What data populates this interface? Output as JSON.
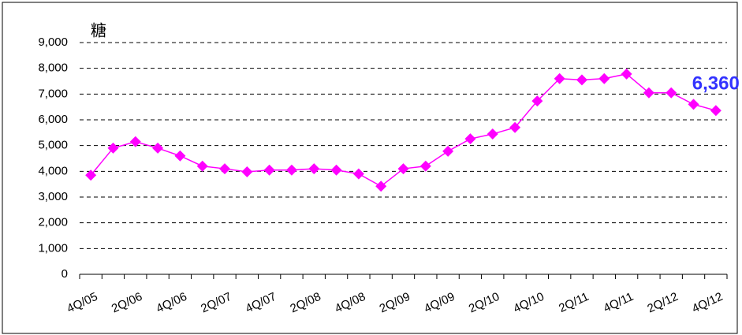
{
  "chart_data": {
    "type": "line",
    "y_label": "糖",
    "categories": [
      "4Q/05",
      null,
      "2Q/06",
      null,
      "4Q/06",
      null,
      "2Q/07",
      null,
      "4Q/07",
      null,
      "2Q/08",
      null,
      "4Q/08",
      null,
      "2Q/09",
      null,
      "4Q/09",
      null,
      "2Q/10",
      null,
      "4Q/10",
      null,
      "2Q/11",
      null,
      "4Q/11",
      null,
      "2Q/12",
      null,
      "4Q/12"
    ],
    "series": [
      {
        "name": "Sugar",
        "color": "#ff00ff",
        "values": [
          3850,
          4900,
          5150,
          4900,
          4600,
          4200,
          4100,
          3980,
          4050,
          4050,
          4100,
          4050,
          3900,
          3420,
          4100,
          4200,
          4780,
          5260,
          5450,
          5700,
          6730,
          7600,
          7550,
          7600,
          7780,
          7050,
          7050,
          6600,
          6360
        ],
        "value_labels": [
          null,
          null,
          null,
          null,
          null,
          null,
          null,
          null,
          null,
          null,
          null,
          null,
          null,
          null,
          null,
          null,
          null,
          null,
          null,
          null,
          null,
          null,
          null,
          null,
          null,
          null,
          null,
          null,
          "6,360"
        ]
      }
    ],
    "label_color": "#3333ff",
    "ylim": [
      0,
      9000
    ],
    "yticks": [
      0,
      {
        "value": 1000,
        "label": "1,000"
      },
      {
        "value": 2000,
        "label": "2,000"
      },
      {
        "value": 3000,
        "label": "3,000"
      },
      {
        "value": 4000,
        "label": "4,000"
      },
      {
        "value": 5000,
        "label": "5,000"
      },
      {
        "value": 6000,
        "label": "6,000"
      },
      {
        "value": 7000,
        "label": "7,000"
      },
      {
        "value": 8000,
        "label": "8,000"
      },
      {
        "value": 9000,
        "label": "9,000"
      }
    ],
    "grid": true
  }
}
